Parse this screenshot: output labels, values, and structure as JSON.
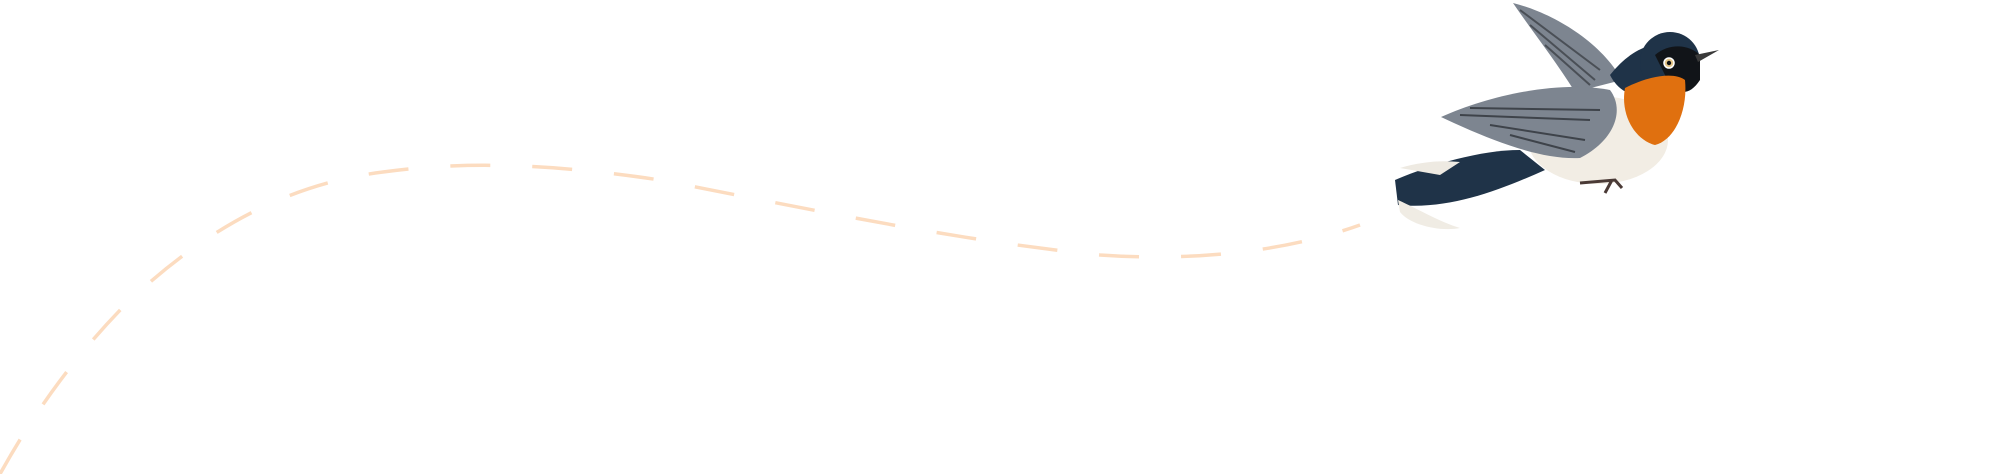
{
  "illustration": {
    "subject_icon": "bird-illustration",
    "colors": {
      "flight_path": "#fcdcc0",
      "bird_blue": "#1f3348",
      "bird_orange": "#e0700f",
      "bird_wing": "#7d8590",
      "bird_belly": "#f2ede4"
    }
  }
}
